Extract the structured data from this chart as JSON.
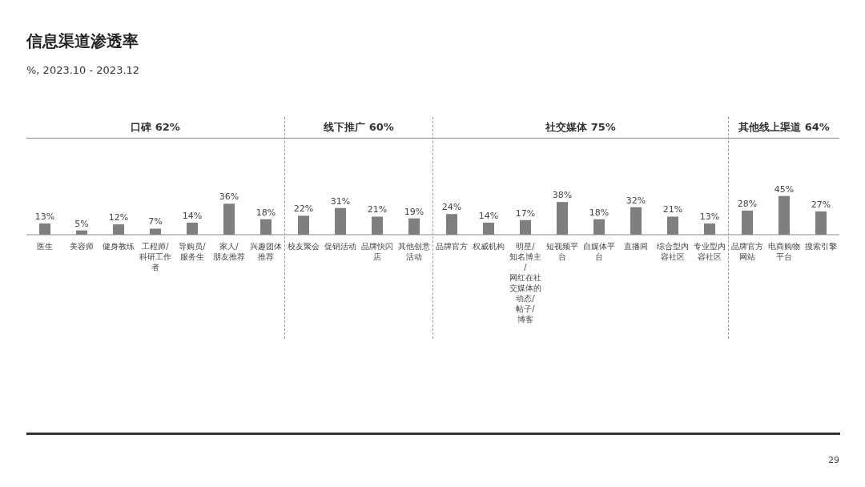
{
  "chart_data": [
    {
      "type": "other",
      "title": "信息渠道渗透率",
      "subtitle": "%, 2023.10 - 2023.12",
      "annotations": [
        "29"
      ]
    },
    {
      "type": "bar",
      "title": "口碑 62%",
      "categories": [
        "医生",
        "美容师",
        "健身教练",
        "工程师/科研工作者",
        "导购员/服务生",
        "家人/朋友推荐",
        "兴趣团体推荐"
      ],
      "values": [
        13,
        5,
        12,
        7,
        14,
        36,
        18
      ],
      "value_labels": [
        "13%",
        "5%",
        "12%",
        "7%",
        "14%",
        "36%",
        "18%"
      ],
      "color": "#7f7f7f"
    },
    {
      "type": "bar",
      "title": "线下推广 60%",
      "categories": [
        "校友聚会",
        "促销活动",
        "品牌快闪店",
        "其他创意活动"
      ],
      "values": [
        22,
        31,
        21,
        19
      ],
      "value_labels": [
        "22%",
        "31%",
        "21%",
        "19%"
      ],
      "color": "#7f7f7f"
    },
    {
      "type": "bar",
      "title": "社交媒体 75%",
      "categories": [
        "品牌官方",
        "权威机构",
        "明星/知名博主/网红在社交媒体的动态/帖子/博客",
        "短视频平台",
        "自媒体平台",
        "直播间",
        "综合型内容社区",
        "专业型内容社区"
      ],
      "values": [
        24,
        14,
        17,
        38,
        18,
        32,
        21,
        13
      ],
      "value_labels": [
        "24%",
        "14%",
        "17%",
        "38%",
        "18%",
        "32%",
        "21%",
        "13%"
      ],
      "color": "#7f7f7f"
    },
    {
      "type": "bar",
      "title": "其他线上渠道 64%",
      "categories": [
        "品牌官方网站",
        "电商购物平台",
        "搜索引擎"
      ],
      "values": [
        28,
        45,
        27
      ],
      "value_labels": [
        "28%",
        "45%",
        "27%"
      ],
      "color": "#7f7f7f"
    }
  ]
}
